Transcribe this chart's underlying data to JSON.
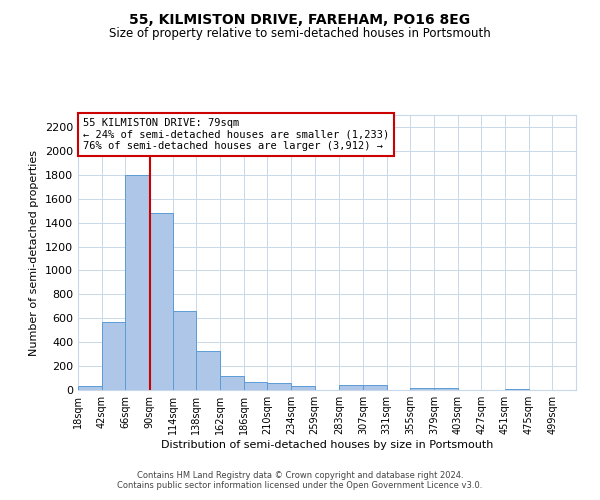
{
  "title": "55, KILMISTON DRIVE, FAREHAM, PO16 8EG",
  "subtitle": "Size of property relative to semi-detached houses in Portsmouth",
  "xlabel": "Distribution of semi-detached houses by size in Portsmouth",
  "ylabel": "Number of semi-detached properties",
  "bin_labels": [
    "18sqm",
    "42sqm",
    "66sqm",
    "90sqm",
    "114sqm",
    "138sqm",
    "162sqm",
    "186sqm",
    "210sqm",
    "234sqm",
    "259sqm",
    "283sqm",
    "307sqm",
    "331sqm",
    "355sqm",
    "379sqm",
    "403sqm",
    "427sqm",
    "451sqm",
    "475sqm",
    "499sqm"
  ],
  "bar_values": [
    35,
    570,
    1800,
    1480,
    660,
    325,
    120,
    65,
    60,
    30,
    0,
    45,
    45,
    0,
    20,
    20,
    0,
    0,
    10,
    0,
    0
  ],
  "bar_color": "#aec6e8",
  "bar_edge_color": "#5b9bd5",
  "vline_x": 79,
  "vline_color": "#cc0000",
  "annotation_title": "55 KILMISTON DRIVE: 79sqm",
  "annotation_line1": "← 24% of semi-detached houses are smaller (1,233)",
  "annotation_line2": "76% of semi-detached houses are larger (3,912) →",
  "annotation_box_color": "#ffffff",
  "annotation_box_edge": "#cc0000",
  "ylim": [
    0,
    2300
  ],
  "yticks": [
    0,
    200,
    400,
    600,
    800,
    1000,
    1200,
    1400,
    1600,
    1800,
    2000,
    2200
  ],
  "bin_edges": [
    6,
    30,
    54,
    78,
    102,
    126,
    150,
    174,
    198,
    222,
    246,
    271,
    295,
    319,
    343,
    367,
    391,
    415,
    439,
    463,
    487,
    511
  ],
  "footer1": "Contains HM Land Registry data © Crown copyright and database right 2024.",
  "footer2": "Contains public sector information licensed under the Open Government Licence v3.0.",
  "background_color": "#ffffff",
  "grid_color": "#c8d8e8"
}
